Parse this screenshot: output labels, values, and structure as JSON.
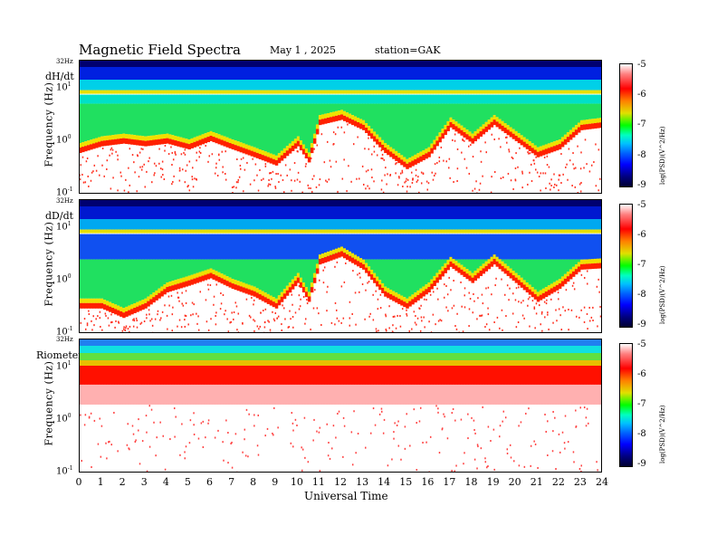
{
  "header": {
    "title": "Magnetic  Field  Spectra",
    "date": "May 1  , 2025",
    "station": "station=GAK"
  },
  "panels": [
    {
      "label": "dH/dt",
      "ylabel": "Frequency  (Hz)",
      "top_tick": "32Hz",
      "cb_label": "log(PSD)(V^2/Hz)"
    },
    {
      "label": "dD/dt",
      "ylabel": "Frequency  (Hz)",
      "top_tick": "32Hz",
      "cb_label": "log(PSD)(V^2/Hz)"
    },
    {
      "label": "Riometer",
      "ylabel": "Frequency  (Hz)",
      "top_tick": "32Hz",
      "cb_label": "log(PSD)(V^2/Hz)"
    }
  ],
  "ytick_base": "10",
  "ytick_exps": [
    "1",
    "0",
    "-1"
  ],
  "colorbar_ticks": [
    "-5",
    "-6",
    "-7",
    "-8",
    "-9"
  ],
  "x_axis": {
    "label": "Universal Time",
    "ticks": [
      "0",
      "1",
      "2",
      "3",
      "4",
      "5",
      "6",
      "7",
      "8",
      "9",
      "10",
      "11",
      "12",
      "13",
      "14",
      "15",
      "16",
      "17",
      "18",
      "19",
      "20",
      "21",
      "22",
      "23",
      "24"
    ]
  },
  "chart_data": [
    {
      "type": "heatmap",
      "title": "dH/dt",
      "xlabel": "Universal Time",
      "ylabel": "Frequency  (Hz)",
      "xlim": [
        0,
        24
      ],
      "ylim_hz": [
        0.1,
        32
      ],
      "y_scale": "log",
      "colorbar_range": [
        -9,
        -5
      ],
      "colorbar_label": "log(PSD)(V^2/Hz)",
      "colormap": [
        "#000030",
        "#0000ff",
        "#00c0ff",
        "#00ff00",
        "#e0e000",
        "#ff0000",
        "#ffffff"
      ],
      "lower_cutoff_hz_by_hour": [
        [
          0,
          0.6
        ],
        [
          1,
          0.8
        ],
        [
          2,
          0.9
        ],
        [
          3,
          0.8
        ],
        [
          4,
          0.9
        ],
        [
          5,
          0.7
        ],
        [
          6,
          1.0
        ],
        [
          7,
          0.7
        ],
        [
          8,
          0.5
        ],
        [
          9,
          0.35
        ],
        [
          10,
          0.8
        ],
        [
          10.5,
          0.4
        ],
        [
          11,
          2.0
        ],
        [
          12,
          2.5
        ],
        [
          13,
          1.6
        ],
        [
          14,
          0.6
        ],
        [
          15,
          0.3
        ],
        [
          16,
          0.5
        ],
        [
          17,
          1.8
        ],
        [
          18,
          0.9
        ],
        [
          19,
          2.0
        ],
        [
          20,
          1.0
        ],
        [
          21,
          0.5
        ],
        [
          22,
          0.7
        ],
        [
          23,
          1.6
        ],
        [
          24,
          1.8
        ]
      ],
      "persistent_band_hz": 8
    },
    {
      "type": "heatmap",
      "title": "dD/dt",
      "xlabel": "Universal Time",
      "ylabel": "Frequency  (Hz)",
      "xlim": [
        0,
        24
      ],
      "ylim_hz": [
        0.1,
        32
      ],
      "y_scale": "log",
      "colorbar_range": [
        -9,
        -5
      ],
      "colorbar_label": "log(PSD)(V^2/Hz)",
      "colormap": [
        "#000030",
        "#0000ff",
        "#00c0ff",
        "#00ff00",
        "#e0e000",
        "#ff0000",
        "#ffffff"
      ],
      "lower_cutoff_hz_by_hour": [
        [
          0,
          0.3
        ],
        [
          1,
          0.3
        ],
        [
          2,
          0.2
        ],
        [
          3,
          0.3
        ],
        [
          4,
          0.6
        ],
        [
          5,
          0.8
        ],
        [
          6,
          1.1
        ],
        [
          7,
          0.7
        ],
        [
          8,
          0.5
        ],
        [
          9,
          0.3
        ],
        [
          10,
          0.9
        ],
        [
          10.5,
          0.4
        ],
        [
          11,
          2.0
        ],
        [
          12,
          2.8
        ],
        [
          13,
          1.6
        ],
        [
          14,
          0.5
        ],
        [
          15,
          0.3
        ],
        [
          16,
          0.6
        ],
        [
          17,
          1.8
        ],
        [
          18,
          0.9
        ],
        [
          19,
          2.0
        ],
        [
          20,
          0.9
        ],
        [
          21,
          0.4
        ],
        [
          22,
          0.7
        ],
        [
          23,
          1.6
        ],
        [
          24,
          1.7
        ]
      ],
      "persistent_band_hz": 8
    },
    {
      "type": "heatmap",
      "title": "Riometer",
      "xlabel": "Universal Time",
      "ylabel": "Frequency  (Hz)",
      "xlim": [
        0,
        24
      ],
      "ylim_hz": [
        0.1,
        32
      ],
      "y_scale": "log",
      "colorbar_range": [
        -9,
        -5
      ],
      "colorbar_label": "log(PSD)(V^2/Hz)",
      "colormap": [
        "#000030",
        "#0000ff",
        "#00c0ff",
        "#00ff00",
        "#e0e000",
        "#ff0000",
        "#ffffff"
      ],
      "high_power_band_hz": [
        6,
        32
      ],
      "background": "low power below ~5 Hz"
    }
  ]
}
